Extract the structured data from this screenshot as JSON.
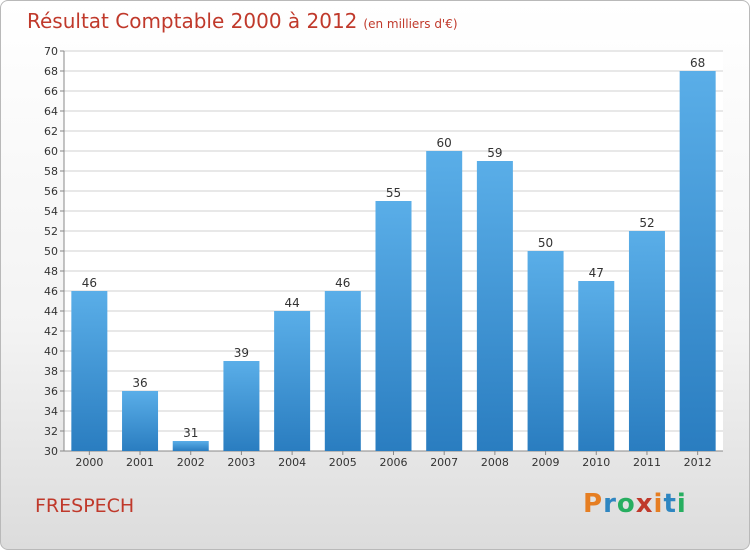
{
  "header": {
    "title": "Résultat Comptable 2000 à 2012",
    "unit": "(en milliers d'€)"
  },
  "footer": {
    "commune": "FRESPECH",
    "logo": {
      "letters": [
        "P",
        "r",
        "o",
        "x",
        "i",
        "t",
        "i"
      ],
      "colors": [
        "#e67e22",
        "#2e86c1",
        "#27ae60",
        "#c0392b",
        "#e67e22",
        "#2e86c1",
        "#27ae60"
      ]
    }
  },
  "colors": {
    "bar_top": "#5aaee8",
    "bar_bottom": "#2a7dc0",
    "grid": "#d2d2d2",
    "axis_text": "#333333",
    "title": "#c0392b"
  },
  "chart_data": {
    "type": "bar",
    "title": "Résultat Comptable 2000 à 2012",
    "subtitle": "(en milliers d'€)",
    "categories": [
      "2000",
      "2001",
      "2002",
      "2003",
      "2004",
      "2005",
      "2006",
      "2007",
      "2008",
      "2009",
      "2010",
      "2011",
      "2012"
    ],
    "values": [
      46,
      36,
      31,
      39,
      44,
      46,
      55,
      60,
      59,
      50,
      47,
      52,
      68
    ],
    "ylim": [
      30,
      70
    ],
    "ytick_step": 2,
    "grid": true,
    "data_labels": true
  }
}
